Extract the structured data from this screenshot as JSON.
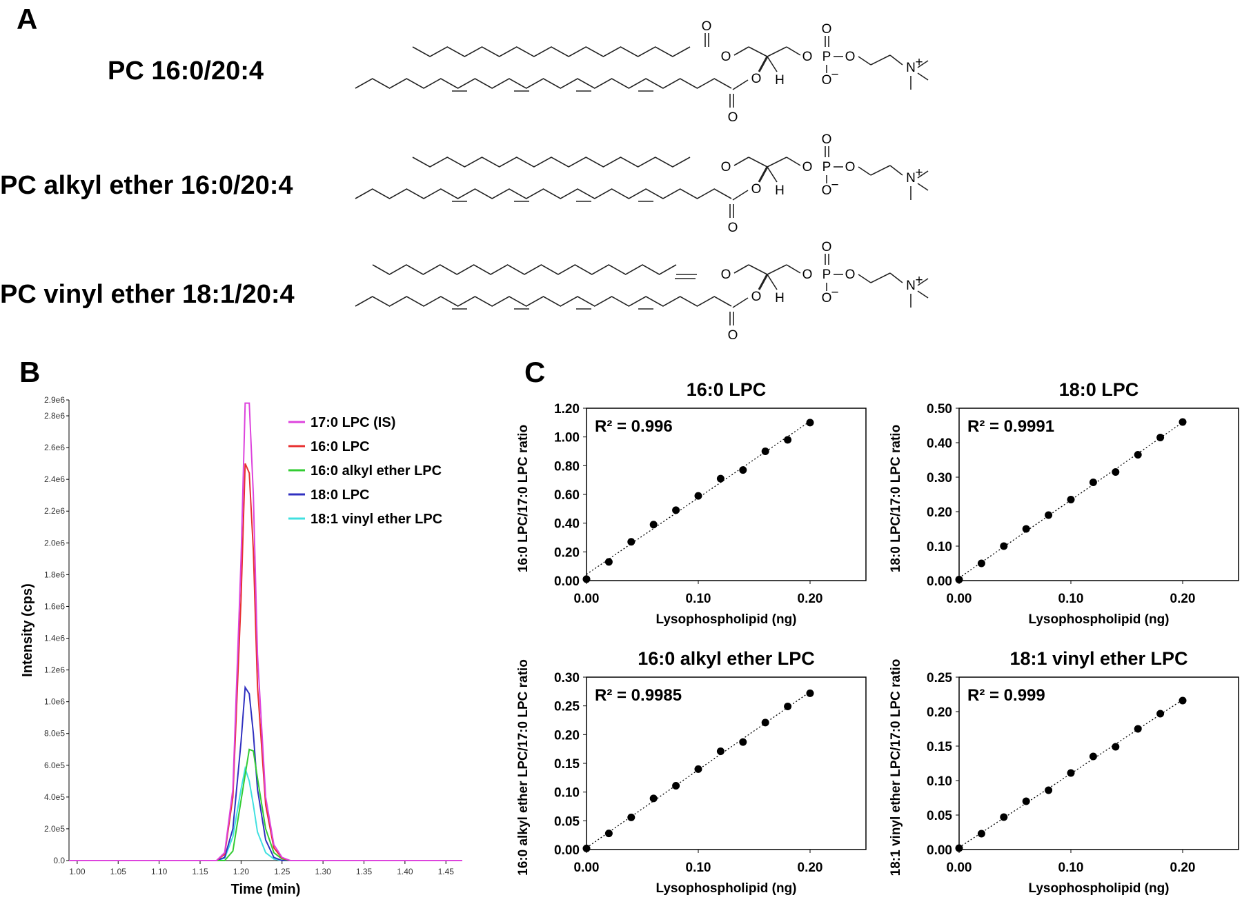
{
  "panel_a": {
    "letter": "A",
    "molecules": [
      {
        "name": "PC 16:0/20:4",
        "sn1_link": "ester"
      },
      {
        "name": "PC alkyl ether 16:0/20:4",
        "sn1_link": "alkyl"
      },
      {
        "name": "PC vinyl ether 18:1/20:4",
        "sn1_link": "vinyl"
      }
    ],
    "atoms": {
      "O": "O",
      "P": "P",
      "H": "H",
      "N": "N",
      "plus": "+",
      "minus": "−"
    }
  },
  "panel_b": {
    "letter": "B"
  },
  "panel_c": {
    "letter": "C"
  },
  "chart_data": [
    {
      "type": "line",
      "panel": "B",
      "xlabel": "Time (min)",
      "ylabel": "Intensity (cps)",
      "xlim": [
        0.99,
        1.47
      ],
      "ylim": [
        0,
        2900000
      ],
      "x_ticks": [
        "1.00",
        "1.05",
        "1.10",
        "1.15",
        "1.20",
        "1.25",
        "1.30",
        "1.35",
        "1.40",
        "1.45"
      ],
      "y_ticks": [
        "0.0",
        "2.0e5",
        "4.0e5",
        "6.0e5",
        "8.0e5",
        "1.0e6",
        "1.2e6",
        "1.4e6",
        "1.6e6",
        "1.8e6",
        "2.0e6",
        "2.2e6",
        "2.4e6",
        "2.6e6",
        "2.8e6",
        "2.9e6"
      ],
      "series": [
        {
          "name": "17:0 LPC (IS)",
          "color": "#dd44dd",
          "x": [
            0.99,
            1.17,
            1.18,
            1.19,
            1.2,
            1.205,
            1.21,
            1.215,
            1.22,
            1.23,
            1.24,
            1.25,
            1.26,
            1.47
          ],
          "values": [
            0,
            0,
            50000,
            450000,
            1900000,
            2880000,
            2880000,
            2300000,
            1300000,
            400000,
            100000,
            20000,
            0,
            0
          ]
        },
        {
          "name": "16:0 LPC",
          "color": "#e83030",
          "x": [
            0.99,
            1.17,
            1.18,
            1.19,
            1.2,
            1.205,
            1.21,
            1.215,
            1.22,
            1.23,
            1.24,
            1.25,
            1.26,
            1.47
          ],
          "values": [
            0,
            0,
            40000,
            400000,
            1650000,
            2500000,
            2440000,
            1950000,
            1100000,
            350000,
            80000,
            15000,
            0,
            0
          ]
        },
        {
          "name": "16:0 alkyl ether LPC",
          "color": "#33cc33",
          "x": [
            0.99,
            1.18,
            1.19,
            1.2,
            1.21,
            1.215,
            1.22,
            1.23,
            1.24,
            1.25,
            1.26,
            1.47
          ],
          "values": [
            0,
            0,
            60000,
            380000,
            700000,
            690000,
            520000,
            200000,
            50000,
            10000,
            0,
            0
          ]
        },
        {
          "name": "18:0 LPC",
          "color": "#3030c0",
          "x": [
            0.99,
            1.17,
            1.18,
            1.19,
            1.2,
            1.205,
            1.21,
            1.215,
            1.22,
            1.23,
            1.24,
            1.25,
            1.47
          ],
          "values": [
            0,
            0,
            20000,
            200000,
            750000,
            1090000,
            1050000,
            800000,
            450000,
            130000,
            20000,
            0,
            0
          ]
        },
        {
          "name": "18:1 vinyl ether LPC",
          "color": "#40e0e0",
          "x": [
            0.99,
            1.17,
            1.18,
            1.19,
            1.2,
            1.205,
            1.21,
            1.215,
            1.22,
            1.23,
            1.24,
            1.25,
            1.47
          ],
          "values": [
            0,
            0,
            15000,
            150000,
            450000,
            580000,
            500000,
            350000,
            180000,
            50000,
            10000,
            0,
            0
          ]
        }
      ]
    },
    {
      "type": "scatter",
      "panel": "C",
      "title": "16:0 LPC",
      "xlabel": "Lysophospholipid (ng)",
      "ylabel": "16:0 LPC/17:0 LPC ratio",
      "annotation": "R² = 0.996",
      "xlim": [
        0,
        0.25
      ],
      "ylim": [
        0,
        1.2
      ],
      "x_ticks": [
        "0.00",
        "0.10",
        "0.20"
      ],
      "y_ticks": [
        "0.00",
        "0.20",
        "0.40",
        "0.60",
        "0.80",
        "1.00",
        "1.20"
      ],
      "trendline": true,
      "x": [
        0.0,
        0.02,
        0.04,
        0.06,
        0.08,
        0.1,
        0.12,
        0.14,
        0.16,
        0.18,
        0.2
      ],
      "y": [
        0.01,
        0.13,
        0.27,
        0.39,
        0.49,
        0.59,
        0.71,
        0.77,
        0.9,
        0.98,
        1.1
      ]
    },
    {
      "type": "scatter",
      "panel": "C",
      "title": "18:0 LPC",
      "xlabel": "Lysophospholipid (ng)",
      "ylabel": "18:0 LPC/17:0 LPC ratio",
      "annotation": "R² = 0.9991",
      "xlim": [
        0,
        0.25
      ],
      "ylim": [
        0,
        0.5
      ],
      "x_ticks": [
        "0.00",
        "0.10",
        "0.20"
      ],
      "y_ticks": [
        "0.00",
        "0.10",
        "0.20",
        "0.30",
        "0.40",
        "0.50"
      ],
      "trendline": true,
      "x": [
        0.0,
        0.02,
        0.04,
        0.06,
        0.08,
        0.1,
        0.12,
        0.14,
        0.16,
        0.18,
        0.2
      ],
      "y": [
        0.003,
        0.05,
        0.1,
        0.15,
        0.19,
        0.235,
        0.285,
        0.315,
        0.365,
        0.415,
        0.46
      ]
    },
    {
      "type": "scatter",
      "panel": "C",
      "title": "16:0 alkyl ether LPC",
      "xlabel": "Lysophospholipid (ng)",
      "ylabel": "16:0 alkyl ether LPC/17:0 LPC ratio",
      "annotation": "R² = 0.9985",
      "xlim": [
        0,
        0.25
      ],
      "ylim": [
        0,
        0.3
      ],
      "x_ticks": [
        "0.00",
        "0.10",
        "0.20"
      ],
      "y_ticks": [
        "0.00",
        "0.05",
        "0.10",
        "0.15",
        "0.20",
        "0.25",
        "0.30"
      ],
      "trendline": true,
      "x": [
        0.0,
        0.02,
        0.04,
        0.06,
        0.08,
        0.1,
        0.12,
        0.14,
        0.16,
        0.18,
        0.2
      ],
      "y": [
        0.002,
        0.028,
        0.056,
        0.089,
        0.111,
        0.14,
        0.171,
        0.187,
        0.221,
        0.249,
        0.272
      ]
    },
    {
      "type": "scatter",
      "panel": "C",
      "title": "18:1 vinyl ether LPC",
      "xlabel": "Lysophospholipid (ng)",
      "ylabel": "18:1 vinyl ether LPC/17:0 LPC ratio",
      "annotation": "R² = 0.999",
      "xlim": [
        0,
        0.25
      ],
      "ylim": [
        0,
        0.25
      ],
      "x_ticks": [
        "0.00",
        "0.10",
        "0.20"
      ],
      "y_ticks": [
        "0.00",
        "0.05",
        "0.10",
        "0.15",
        "0.20",
        "0.25"
      ],
      "trendline": true,
      "x": [
        0.0,
        0.02,
        0.04,
        0.06,
        0.08,
        0.1,
        0.12,
        0.14,
        0.16,
        0.18,
        0.2
      ],
      "y": [
        0.002,
        0.023,
        0.047,
        0.07,
        0.086,
        0.111,
        0.135,
        0.149,
        0.175,
        0.197,
        0.216
      ]
    }
  ]
}
